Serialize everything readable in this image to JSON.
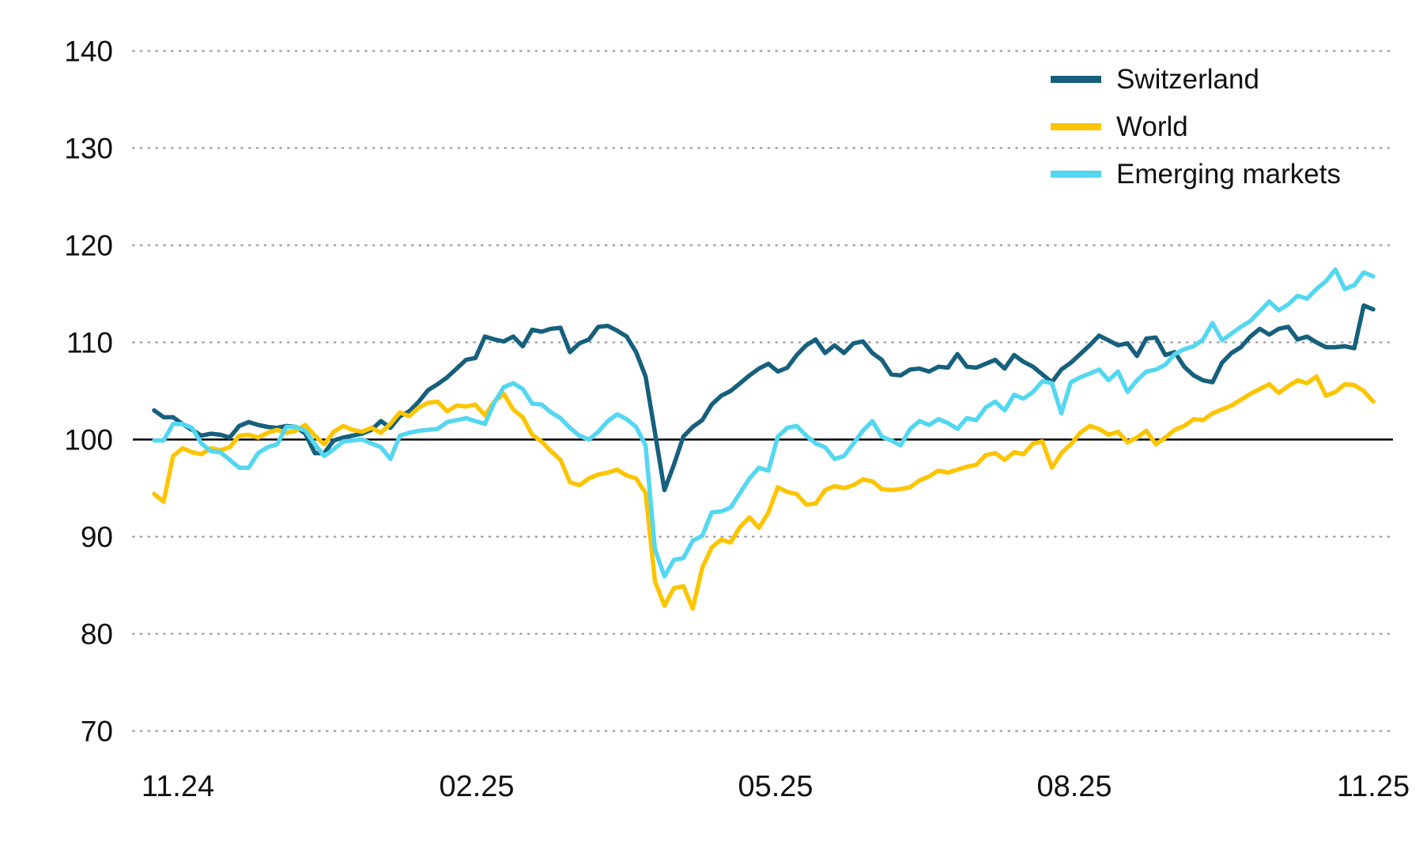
{
  "chart_data": {
    "type": "line",
    "title": "",
    "xlabel": "",
    "ylabel": "",
    "grid": "dotted-horizontal",
    "legend_position": "top-right",
    "baseline_value": 100,
    "ylim": [
      66,
      144
    ],
    "y_ticks": [
      140,
      130,
      120,
      110,
      100,
      90,
      80,
      70
    ],
    "y_tick_labels": [
      "140",
      "130",
      "120",
      "110",
      "100",
      "90",
      "80",
      "70"
    ],
    "x_tick_labels": [
      "11.24",
      "02.25",
      "05.25",
      "08.25",
      "11.25"
    ],
    "axis_text_color": "#111111",
    "gridline_color": "#9b9b9b",
    "baseline_color": "#000000",
    "series": [
      {
        "name": "Switzerland",
        "color": "#16607d",
        "values": [
          103.0,
          102.3,
          102.3,
          101.6,
          101.0,
          100.4,
          100.6,
          100.5,
          100.2,
          101.4,
          101.8,
          101.5,
          101.3,
          101.2,
          101.4,
          101.3,
          100.6,
          98.6,
          98.6,
          99.9,
          100.2,
          100.4,
          100.6,
          101.0,
          101.9,
          101.2,
          102.4,
          102.9,
          103.9,
          105.1,
          105.7,
          106.4,
          107.3,
          108.2,
          108.4,
          110.6,
          110.3,
          110.1,
          110.6,
          109.6,
          111.3,
          111.1,
          111.4,
          111.5,
          109.0,
          109.9,
          110.3,
          111.6,
          111.7,
          111.2,
          110.6,
          109.0,
          106.5,
          100.7,
          94.8,
          97.4,
          100.3,
          101.3,
          102.0,
          103.6,
          104.5,
          105.0,
          105.8,
          106.6,
          107.3,
          107.8,
          107.0,
          107.4,
          108.7,
          109.7,
          110.3,
          108.9,
          109.7,
          108.9,
          109.9,
          110.1,
          108.9,
          108.2,
          106.7,
          106.6,
          107.2,
          107.3,
          107.0,
          107.5,
          107.4,
          108.8,
          107.5,
          107.4,
          107.8,
          108.2,
          107.3,
          108.7,
          108.0,
          107.5,
          106.7,
          105.9,
          107.2,
          107.9,
          108.8,
          109.7,
          110.7,
          110.2,
          109.7,
          109.9,
          108.6,
          110.4,
          110.5,
          108.7,
          109.0,
          107.5,
          106.6,
          106.1,
          105.9,
          107.9,
          108.9,
          109.5,
          110.6,
          111.4,
          110.8,
          111.4,
          111.6,
          110.3,
          110.6,
          110.0,
          109.5,
          109.5,
          109.6,
          109.4,
          113.8,
          113.4
        ]
      },
      {
        "name": "World",
        "color": "#fcc500",
        "values": [
          94.4,
          93.6,
          98.3,
          99.1,
          98.7,
          98.5,
          99.1,
          98.9,
          99.2,
          100.4,
          100.5,
          100.2,
          100.7,
          101.0,
          100.7,
          100.9,
          101.5,
          100.4,
          99.5,
          100.8,
          101.4,
          101.0,
          100.8,
          101.2,
          100.7,
          101.6,
          102.8,
          102.4,
          103.3,
          103.8,
          103.9,
          102.9,
          103.5,
          103.4,
          103.6,
          102.5,
          103.9,
          104.7,
          103.1,
          102.3,
          100.5,
          99.8,
          98.8,
          97.9,
          95.6,
          95.3,
          96.0,
          96.4,
          96.6,
          96.9,
          96.3,
          96.0,
          94.5,
          85.4,
          82.9,
          84.7,
          84.9,
          82.6,
          86.8,
          88.9,
          89.7,
          89.4,
          91.0,
          92.0,
          90.9,
          92.5,
          95.1,
          94.6,
          94.4,
          93.3,
          93.4,
          94.8,
          95.2,
          95.0,
          95.3,
          95.9,
          95.7,
          94.9,
          94.8,
          94.9,
          95.1,
          95.8,
          96.2,
          96.8,
          96.6,
          96.9,
          97.2,
          97.4,
          98.4,
          98.6,
          97.9,
          98.7,
          98.5,
          99.6,
          99.8,
          97.1,
          98.6,
          99.5,
          100.7,
          101.4,
          101.1,
          100.5,
          100.8,
          99.7,
          100.2,
          100.9,
          99.5,
          100.2,
          101.0,
          101.4,
          102.1,
          102.0,
          102.7,
          103.1,
          103.5,
          104.1,
          104.7,
          105.2,
          105.7,
          104.8,
          105.5,
          106.1,
          105.8,
          106.5,
          104.5,
          104.9,
          105.7,
          105.6,
          105.0,
          103.9
        ]
      },
      {
        "name": "Emerging markets",
        "color": "#54d7f0",
        "values": [
          99.9,
          99.9,
          101.6,
          101.6,
          101.2,
          99.6,
          98.8,
          98.7,
          97.9,
          97.1,
          97.1,
          98.6,
          99.2,
          99.5,
          101.3,
          101.3,
          100.9,
          99.5,
          98.3,
          99.0,
          99.8,
          99.9,
          100.0,
          99.6,
          99.2,
          98.0,
          100.4,
          100.7,
          100.9,
          101.0,
          101.1,
          101.8,
          102.0,
          102.2,
          101.9,
          101.6,
          103.8,
          105.4,
          105.8,
          105.2,
          103.7,
          103.6,
          102.8,
          102.2,
          101.2,
          100.4,
          100.0,
          100.8,
          101.9,
          102.6,
          102.1,
          101.3,
          99.4,
          88.7,
          85.9,
          87.6,
          87.8,
          89.6,
          90.1,
          92.5,
          92.6,
          93.0,
          94.5,
          96.0,
          97.1,
          96.8,
          100.3,
          101.2,
          101.4,
          100.4,
          99.6,
          99.2,
          98.0,
          98.3,
          99.6,
          100.9,
          101.9,
          100.3,
          99.9,
          99.4,
          101.1,
          101.9,
          101.5,
          102.1,
          101.7,
          101.1,
          102.2,
          102.0,
          103.3,
          103.9,
          103.0,
          104.6,
          104.2,
          104.9,
          106.0,
          105.8,
          102.7,
          105.9,
          106.4,
          106.8,
          107.2,
          106.1,
          107.0,
          104.9,
          106.1,
          107.0,
          107.2,
          107.7,
          108.8,
          109.3,
          109.6,
          110.3,
          112.0,
          110.2,
          110.9,
          111.6,
          112.2,
          113.2,
          114.2,
          113.3,
          113.9,
          114.8,
          114.5,
          115.5,
          116.3,
          117.5,
          115.5,
          115.9,
          117.2,
          116.8
        ]
      }
    ]
  }
}
